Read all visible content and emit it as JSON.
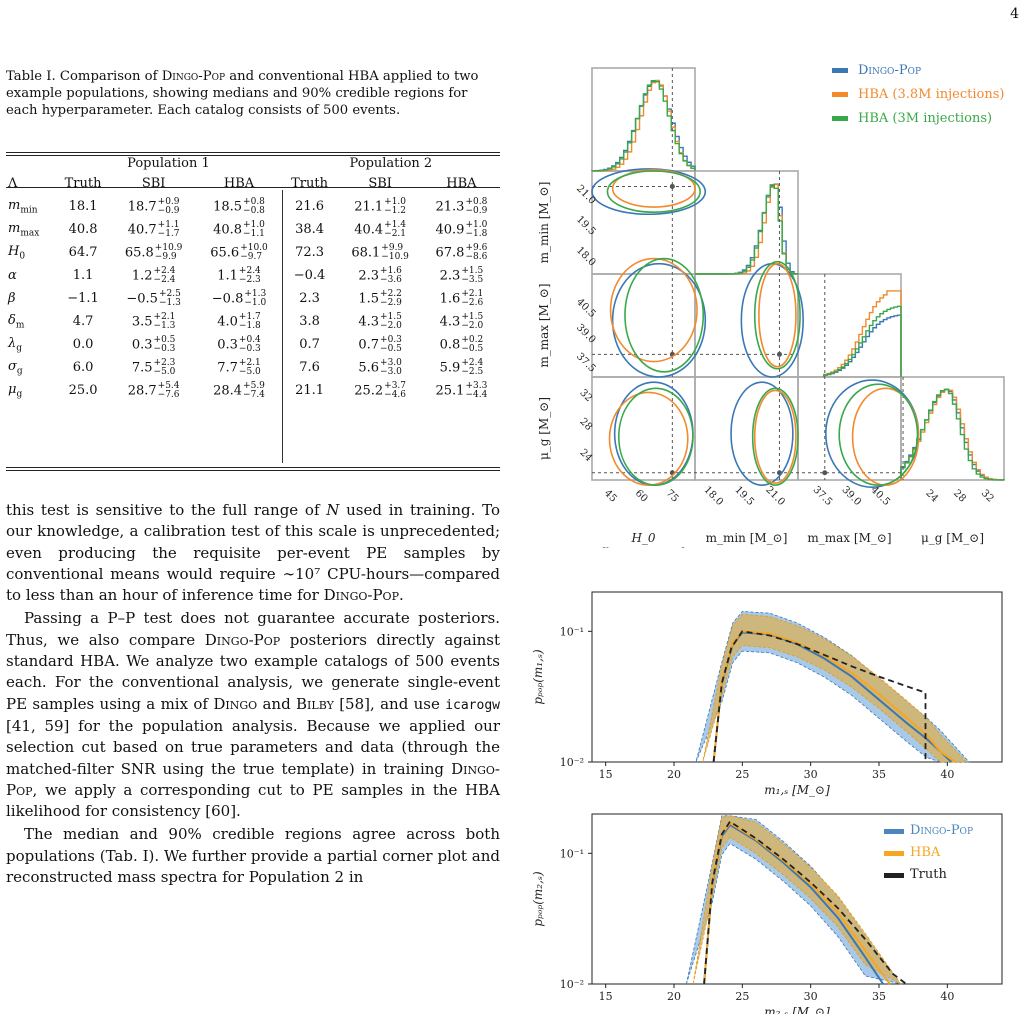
{
  "page_number": "4",
  "caption": {
    "label": "Table I.",
    "text_1": "Comparison of",
    "dingo_pop": "Dingo-Pop",
    "text_2": "and conventional HBA applied to two example populations, showing medians and 90% credible regions for each hyperparameter. Each catalog consists of 500 events."
  },
  "table": {
    "group_headers": [
      "Population 1",
      "Population 2"
    ],
    "columns": [
      "Λ",
      "Truth",
      "SBI",
      "HBA",
      "Truth",
      "SBI",
      "HBA"
    ],
    "rows": [
      {
        "param": "m_min",
        "p1": {
          "truth": "18.1",
          "sbi": [
            "18.7",
            "+0.9",
            "−0.9"
          ],
          "hba": [
            "18.5",
            "+0.8",
            "−0.8"
          ]
        },
        "p2": {
          "truth": "21.6",
          "sbi": [
            "21.1",
            "+1.0",
            "−1.2"
          ],
          "hba": [
            "21.3",
            "+0.8",
            "−0.9"
          ]
        }
      },
      {
        "param": "m_max",
        "p1": {
          "truth": "40.8",
          "sbi": [
            "40.7",
            "+1.1",
            "−1.7"
          ],
          "hba": [
            "40.8",
            "+1.0",
            "−1.1"
          ]
        },
        "p2": {
          "truth": "38.4",
          "sbi": [
            "40.4",
            "+1.4",
            "−2.1"
          ],
          "hba": [
            "40.9",
            "+1.0",
            "−1.8"
          ]
        }
      },
      {
        "param": "H_0",
        "p1": {
          "truth": "64.7",
          "sbi": [
            "65.8",
            "+10.9",
            "−9.9"
          ],
          "hba": [
            "65.6",
            "+10.0",
            "−9.7"
          ]
        },
        "p2": {
          "truth": "72.3",
          "sbi": [
            "68.1",
            "+9.9",
            "−10.9"
          ],
          "hba": [
            "67.8",
            "+9.6",
            "−8.6"
          ]
        }
      },
      {
        "param": "α",
        "p1": {
          "truth": "1.1",
          "sbi": [
            "1.2",
            "+2.4",
            "−2.4"
          ],
          "hba": [
            "1.1",
            "+2.4",
            "−2.3"
          ]
        },
        "p2": {
          "truth": "−0.4",
          "sbi": [
            "2.3",
            "+1.6",
            "−3.6"
          ],
          "hba": [
            "2.3",
            "+1.5",
            "−3.5"
          ]
        }
      },
      {
        "param": "β",
        "p1": {
          "truth": "−1.1",
          "sbi": [
            "−0.5",
            "+2.5",
            "−1.3"
          ],
          "hba": [
            "−0.8",
            "+1.3",
            "−1.0"
          ]
        },
        "p2": {
          "truth": "2.3",
          "sbi": [
            "1.5",
            "+2.2",
            "−2.9"
          ],
          "hba": [
            "1.6",
            "+2.1",
            "−2.6"
          ]
        }
      },
      {
        "param": "δ_m",
        "p1": {
          "truth": "4.7",
          "sbi": [
            "3.5",
            "+2.1",
            "−1.3"
          ],
          "hba": [
            "4.0",
            "+1.7",
            "−1.8"
          ]
        },
        "p2": {
          "truth": "3.8",
          "sbi": [
            "4.3",
            "+1.5",
            "−2.0"
          ],
          "hba": [
            "4.3",
            "+1.5",
            "−2.0"
          ]
        }
      },
      {
        "param": "λ_g",
        "p1": {
          "truth": "0.0",
          "sbi": [
            "0.3",
            "+0.5",
            "−0.3"
          ],
          "hba": [
            "0.3",
            "+0.4",
            "−0.3"
          ]
        },
        "p2": {
          "truth": "0.7",
          "sbi": [
            "0.7",
            "+0.3",
            "−0.5"
          ],
          "hba": [
            "0.8",
            "+0.2",
            "−0.5"
          ]
        }
      },
      {
        "param": "σ_g",
        "p1": {
          "truth": "6.0",
          "sbi": [
            "7.5",
            "+2.3",
            "−5.0"
          ],
          "hba": [
            "7.7",
            "+2.1",
            "−5.0"
          ]
        },
        "p2": {
          "truth": "7.6",
          "sbi": [
            "5.6",
            "+3.0",
            "−3.0"
          ],
          "hba": [
            "5.9",
            "+2.4",
            "−2.5"
          ]
        }
      },
      {
        "param": "μ_g",
        "p1": {
          "truth": "25.0",
          "sbi": [
            "28.7",
            "+5.4",
            "−7.6"
          ],
          "hba": [
            "28.4",
            "+5.9",
            "−7.4"
          ]
        },
        "p2": {
          "truth": "21.1",
          "sbi": [
            "25.2",
            "+3.7",
            "−4.6"
          ],
          "hba": [
            "25.1",
            "+3.3",
            "−4.4"
          ]
        }
      }
    ]
  },
  "paragraphs": [
    "this test is sensitive to the full range of N used in training. To our knowledge, a calibration test of this scale is unprecedented; even producing the requisite per-event PE samples by conventional means would require ∼10⁷ CPU-hours—compared to less than an hour of inference time for Dingo-Pop.",
    "Passing a P–P test does not guarantee accurate posteriors. Thus, we also compare Dingo-Pop posteriors directly against standard HBA. We analyze two example catalogs of 500 events each. For the conventional analysis, we generate single-event PE samples using a mix of Dingo and Bilby [58], and use icarogw [41, 59] for the population analysis. Because we applied our selection cut based on true parameters and data (through the matched-filter SNR using the true template) in training Dingo-Pop, we apply a corresponding cut to PE samples in the HBA likelihood for consistency [60].",
    "The median and 90% credible regions agree across both populations (Tab. I). We further provide a partial corner plot and reconstructed mass spectra for Population 2 in"
  ],
  "corner": {
    "legend": [
      "Dingo-Pop",
      "HBA (3.8M injections)",
      "HBA (3M injections)"
    ],
    "colors": {
      "dingo": "#3a78b5",
      "hba38": "#f28a2e",
      "hba3": "#3aa84a"
    },
    "xlabels": [
      "H_0",
      "[km s⁻¹ Mpc⁻¹]",
      "m_min [M_⊙]",
      "m_max [M_⊙]",
      "μ_g [M_⊙]"
    ],
    "ylabels": [
      "m_min [M_⊙]",
      "m_max [M_⊙]",
      "μ_g [M_⊙]"
    ],
    "xticks": [
      [
        "45",
        "60",
        "75"
      ],
      [
        "18.0",
        "19.5",
        "21.0"
      ],
      [
        "37.5",
        "39.0",
        "40.5"
      ],
      [
        "24",
        "28",
        "32"
      ]
    ],
    "yticks": [
      [
        "21.0",
        "19.5",
        "18.0"
      ],
      [
        "40.5",
        "39.0",
        "37.5"
      ],
      [
        "32",
        "28",
        "24"
      ]
    ]
  },
  "chart_data": [
    {
      "type": "line",
      "xlabel": "m_{1,s} [M_⊙]",
      "ylabel": "p_pop(m_{1,s})",
      "xlim": [
        14,
        44
      ],
      "ylim": [
        0.01,
        0.2
      ],
      "yscale": "log",
      "xticks": [
        "15",
        "20",
        "25",
        "30",
        "35",
        "40"
      ],
      "yticks": [
        "10⁻²",
        "10⁻¹"
      ],
      "series": [
        {
          "name": "",
          "role": "truth",
          "x": [
            22.9,
            23.5,
            24.2,
            25.0,
            27,
            29,
            31,
            33,
            35,
            37,
            38.4,
            38.4
          ],
          "y": [
            0.01,
            0.04,
            0.075,
            0.1,
            0.093,
            0.08,
            0.066,
            0.054,
            0.045,
            0.038,
            0.034,
            0.01
          ]
        },
        {
          "name": "",
          "role": "dingo-median",
          "x": [
            22.9,
            23.5,
            24.3,
            25,
            27,
            29,
            31,
            33,
            35,
            37,
            38.5,
            39.5,
            40.3
          ],
          "y": [
            0.01,
            0.04,
            0.08,
            0.098,
            0.095,
            0.08,
            0.062,
            0.045,
            0.03,
            0.02,
            0.015,
            0.012,
            0.01
          ]
        },
        {
          "name": "",
          "role": "hba-median",
          "x": [
            22.9,
            23.5,
            24.3,
            25,
            27,
            29,
            31,
            33,
            35,
            37,
            38.5,
            39.5,
            40.6
          ],
          "y": [
            0.01,
            0.041,
            0.082,
            0.1,
            0.096,
            0.082,
            0.065,
            0.048,
            0.033,
            0.022,
            0.016,
            0.012,
            0.01
          ]
        }
      ]
    },
    {
      "type": "line",
      "xlabel": "m_{2,s} [M_⊙]",
      "ylabel": "p_pop(m_{2,s})",
      "xlim": [
        14,
        44
      ],
      "ylim": [
        0.01,
        0.2
      ],
      "yscale": "log",
      "xticks": [
        "15",
        "20",
        "25",
        "30",
        "35",
        "40"
      ],
      "yticks": [
        "10⁻²",
        "10⁻¹"
      ],
      "legend": [
        "Dingo-Pop",
        "HBA",
        "Truth"
      ],
      "series": [
        {
          "name": "Truth",
          "x": [
            22.2,
            22.8,
            23.5,
            24.1,
            26,
            28,
            30,
            32,
            34,
            36,
            37
          ],
          "y": [
            0.01,
            0.06,
            0.14,
            0.175,
            0.13,
            0.09,
            0.06,
            0.038,
            0.022,
            0.012,
            0.01
          ]
        },
        {
          "name": "Dingo-Pop",
          "x": [
            22.2,
            22.8,
            23.5,
            24.1,
            26,
            28,
            30,
            32,
            34,
            35.3
          ],
          "y": [
            0.01,
            0.058,
            0.135,
            0.165,
            0.125,
            0.085,
            0.055,
            0.032,
            0.016,
            0.01
          ]
        },
        {
          "name": "HBA",
          "x": [
            22.2,
            22.8,
            23.5,
            24.1,
            26,
            28,
            30,
            32,
            34,
            35.8
          ],
          "y": [
            0.01,
            0.06,
            0.14,
            0.17,
            0.128,
            0.088,
            0.058,
            0.035,
            0.018,
            0.01
          ]
        }
      ]
    }
  ]
}
